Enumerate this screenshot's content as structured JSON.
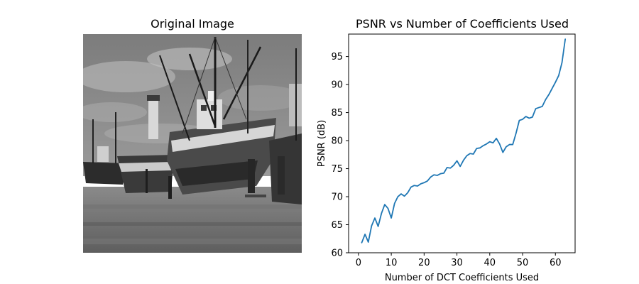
{
  "left_panel": {
    "title": "Original Image"
  },
  "colors": {
    "line": "#1f77b4",
    "axis": "#000000",
    "background": "#ffffff"
  },
  "chart_data": {
    "type": "line",
    "title": "PSNR vs Number of Coefficients Used",
    "xlabel": "Number of DCT Coefficients Used",
    "ylabel": "PSNR (dB)",
    "xlim": [
      -3,
      66
    ],
    "ylim": [
      60,
      99
    ],
    "xticks": [
      0,
      10,
      20,
      30,
      40,
      50,
      60
    ],
    "yticks": [
      60,
      65,
      70,
      75,
      80,
      85,
      90,
      95
    ],
    "grid": false,
    "series": [
      {
        "x": [
          1,
          2,
          3,
          4,
          5,
          6,
          7,
          8,
          9,
          10,
          11,
          12,
          13,
          14,
          15,
          16,
          17,
          18,
          19,
          20,
          21,
          22,
          23,
          24,
          25,
          26,
          27,
          28,
          29,
          30,
          31,
          32,
          33,
          34,
          35,
          36,
          37,
          38,
          39,
          40,
          41,
          42,
          43,
          44,
          45,
          46,
          47,
          48,
          49,
          50,
          51,
          52,
          53,
          54,
          55,
          56,
          57,
          58,
          59,
          60,
          61,
          62,
          63
        ],
        "y": [
          61.8,
          63.3,
          61.9,
          64.8,
          66.2,
          64.7,
          67.0,
          68.6,
          67.9,
          66.2,
          68.8,
          70.0,
          70.5,
          70.1,
          70.7,
          71.7,
          72.0,
          71.9,
          72.3,
          72.5,
          72.8,
          73.5,
          73.9,
          73.8,
          74.1,
          74.2,
          75.2,
          75.1,
          75.6,
          76.4,
          75.4,
          76.5,
          77.3,
          77.7,
          77.6,
          78.6,
          78.7,
          79.1,
          79.4,
          79.8,
          79.6,
          80.4,
          79.4,
          77.9,
          78.9,
          79.3,
          79.3,
          81.3,
          83.6,
          83.8,
          84.3,
          84.0,
          84.2,
          85.7,
          85.9,
          86.1,
          87.3,
          88.2,
          89.3,
          90.4,
          91.6,
          93.9,
          98.1
        ]
      }
    ]
  }
}
